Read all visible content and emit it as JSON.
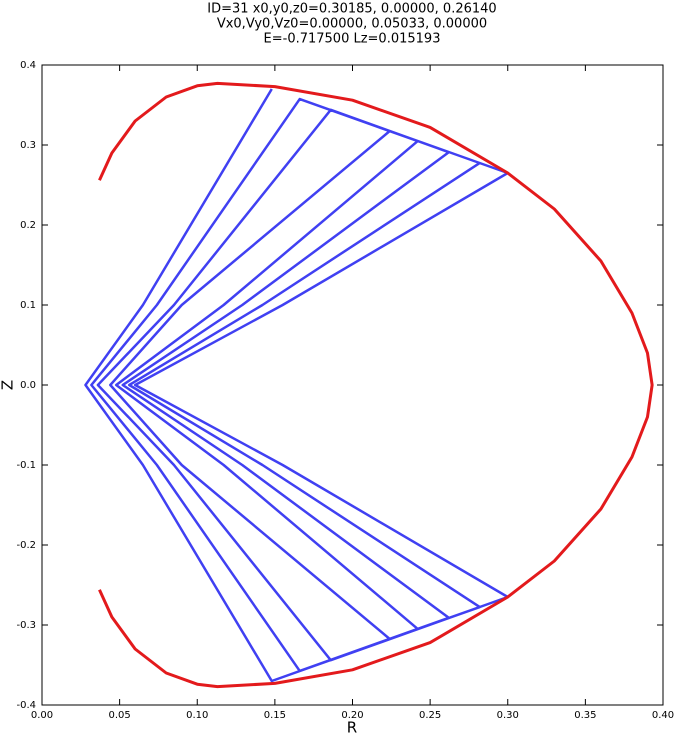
{
  "chart_data": {
    "type": "line",
    "title": [
      "ID=31      x0,y0,z0=0.30185, 0.00000, 0.26140",
      "Vx0,Vy0,Vz0=0.00000, 0.05033, 0.00000",
      "E=-0.717500    Lz=0.015193"
    ],
    "xlabel": "R",
    "ylabel": "Z",
    "xlim": [
      0,
      0.4
    ],
    "ylim": [
      -0.4,
      0.4
    ],
    "xticks": [
      {
        "value": 0,
        "label": "0.00"
      },
      {
        "value": 0.05,
        "label": "0.05"
      },
      {
        "value": 0.1,
        "label": "0.10"
      },
      {
        "value": 0.15,
        "label": "0.15"
      },
      {
        "value": 0.2,
        "label": "0.20"
      },
      {
        "value": 0.25,
        "label": "0.25"
      },
      {
        "value": 0.3,
        "label": "0.30"
      },
      {
        "value": 0.35,
        "label": "0.35"
      },
      {
        "value": 0.4,
        "label": "0.40"
      }
    ],
    "yticks": [
      -0.4,
      -0.3,
      -0.2,
      -0.1,
      {
        "value": 0,
        "label": "0.0"
      },
      0.1,
      0.2,
      0.3,
      0.4
    ],
    "series": [
      {
        "color": "#0000ee",
        "x": [
          0.148,
          0.065,
          0.028,
          0.065,
          0.148,
          0.224,
          0.09,
          0.044,
          0.09,
          0.224,
          0.3,
          0.155,
          0.06,
          0.155,
          0.3,
          0.186,
          0.085,
          0.036,
          0.085,
          0.186,
          0.262,
          0.129,
          0.052,
          0.129,
          0.262,
          0.166,
          0.074,
          0.0318,
          0.074,
          0.166,
          0.242,
          0.117,
          0.0478,
          0.117,
          0.242,
          0.282,
          0.142,
          0.0562,
          0.142,
          0.282
        ],
        "values": [
          0.37,
          0.1,
          0,
          -0.1,
          -0.37,
          -0.3175,
          -0.1,
          0,
          0.1,
          0.3175,
          0.265,
          0.1,
          0,
          -0.1,
          -0.265,
          -0.344,
          -0.1,
          0,
          0.1,
          0.344,
          0.291,
          0.1,
          0,
          -0.1,
          -0.291,
          -0.3574,
          -0.1,
          0,
          0.1,
          0.3574,
          0.3049,
          0.1,
          0,
          -0.1,
          -0.3049,
          -0.2776,
          -0.1,
          0,
          0.1,
          0.2776
        ]
      },
      {
        "color": "#e31a1c",
        "x": [
          0.037,
          0.045,
          0.06,
          0.08,
          0.1,
          0.113,
          0.15,
          0.2,
          0.25,
          0.3,
          0.33,
          0.36,
          0.38,
          0.39,
          0.393,
          0.39,
          0.38,
          0.36,
          0.33,
          0.3,
          0.25,
          0.2,
          0.15,
          0.113,
          0.1,
          0.08,
          0.06,
          0.045,
          0.037
        ],
        "values": [
          0.256,
          0.29,
          0.33,
          0.36,
          0.374,
          0.377,
          0.373,
          0.356,
          0.322,
          0.265,
          0.22,
          0.155,
          0.09,
          0.04,
          0,
          -0.04,
          -0.09,
          -0.155,
          -0.22,
          -0.265,
          -0.322,
          -0.356,
          -0.373,
          -0.377,
          -0.374,
          -0.36,
          -0.33,
          -0.29,
          -0.256
        ]
      }
    ]
  }
}
